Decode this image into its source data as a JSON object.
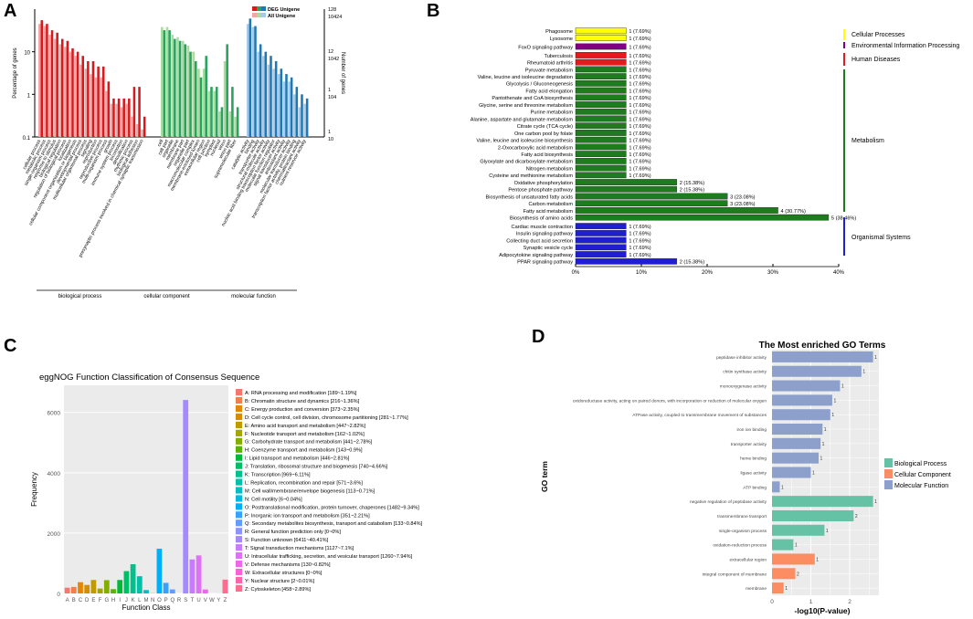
{
  "panel_labels": {
    "a": "A",
    "b": "B",
    "c": "C",
    "d": "D"
  },
  "chart_data": [
    {
      "id": "A",
      "type": "bar",
      "scale": "log",
      "ylabel_left": "Percentage of genes",
      "ylabel_right": "Number of genes",
      "left_ticks": [
        "10",
        "1",
        "0.1"
      ],
      "right_ticks": [
        {
          "top": "128",
          "bottom": "10424"
        },
        {
          "top": "12",
          "bottom": "1042"
        },
        {
          "top": "1",
          "bottom": "104"
        },
        {
          "top": "1",
          "bottom": "10"
        }
      ],
      "legend": [
        {
          "name": "DEG Unigene",
          "colors": [
            "#d7191c",
            "#2ca25f",
            "#1f78b4"
          ]
        },
        {
          "name": "All Unigene",
          "colors": [
            "#f4a6a6",
            "#a8dca0",
            "#a6cae8"
          ]
        }
      ],
      "groups": [
        {
          "name": "biological process",
          "color": "#d7191c",
          "light": "#f4a6a6",
          "categories": [
            "cellular process",
            "metabolic process",
            "single-organism process",
            "response to stimulus",
            "biological regulation",
            "regulation of biological process",
            "localization",
            "cellular component organization or biogenesis",
            "developmental process",
            "multicellular organismal process",
            "signaling",
            "reproduction",
            "reproductive process",
            "multi-organism process",
            "growth",
            "immune system process",
            "locomotion",
            "detoxification",
            "rhythmic process",
            "biological adhesion",
            "presynaptic process involved in chemical synaptic transmission"
          ],
          "deg": [
            55,
            45,
            32,
            28,
            20,
            18,
            12,
            10,
            8,
            6,
            6,
            4.5,
            4.5,
            2,
            0.8,
            0.8,
            0.8,
            0.8,
            1.5,
            1.5,
            0.3
          ],
          "all": [
            45,
            40,
            25,
            20,
            15,
            13,
            10,
            8,
            5,
            4,
            3,
            2.5,
            2.5,
            1.2,
            0.6,
            0.6,
            0.5,
            0.6,
            0.3,
            0.2,
            0.15
          ]
        },
        {
          "name": "cellular component",
          "color": "#2ca25f",
          "light": "#a8dca0",
          "categories": [
            "cell",
            "cell part",
            "organelle",
            "membrane",
            "membrane part",
            "organelle part",
            "macromolecular complex",
            "membrane-enclosed lumen",
            "extracellular region",
            "cell junction",
            "symplast",
            "nucleoid",
            "virion",
            "virion part",
            "supramolecular fiber"
          ],
          "deg": [
            32,
            32,
            20,
            18,
            15,
            10,
            6,
            2.5,
            8,
            1.5,
            1.5,
            0.5,
            15,
            1.5,
            0.5
          ],
          "all": [
            38,
            38,
            25,
            22,
            18,
            14,
            10,
            4,
            4,
            1.2,
            1.2,
            0.4,
            6,
            0.4,
            0.3
          ]
        },
        {
          "name": "molecular function",
          "color": "#1f78b4",
          "light": "#a6cae8",
          "categories": [
            "catalytic activity",
            "binding",
            "transporter activity",
            "structural molecule activity",
            "nucleic acid binding transcription factor activity",
            "molecular function regulator",
            "signal transducer activity",
            "antioxidant activity",
            "molecular transducer activity",
            "transcription factor activity, protein binding",
            "chemoattractant activity",
            "nutrient reservoir activity"
          ],
          "deg": [
            60,
            40,
            15,
            10,
            8,
            6,
            4,
            3,
            2.5,
            1.5,
            1,
            0.8
          ],
          "all": [
            45,
            38,
            10,
            8,
            5,
            4,
            3,
            2,
            2,
            1,
            0.5,
            0.6
          ]
        }
      ]
    },
    {
      "id": "B",
      "type": "bar",
      "orientation": "horizontal",
      "x_ticks": [
        "0%",
        "10%",
        "20%",
        "30%",
        "40%"
      ],
      "xlim": [
        0,
        40
      ],
      "bars": [
        {
          "label": "Phagosome",
          "value": 7.69,
          "text": "1 (7.69%)",
          "color": "#ffff00"
        },
        {
          "label": "Lysosome",
          "value": 7.69,
          "text": "1 (7.69%)",
          "color": "#ffff00"
        },
        {
          "label": "FoxO signaling pathway",
          "value": 7.69,
          "text": "1 (7.69%)",
          "color": "#800080"
        },
        {
          "label": "Tuberculosis",
          "value": 7.69,
          "text": "1 (7.69%)",
          "color": "#e41a1c"
        },
        {
          "label": "Rheumatoid arthritis",
          "value": 7.69,
          "text": "1 (7.69%)",
          "color": "#e41a1c"
        },
        {
          "label": "Pyruvate metabolism",
          "value": 7.69,
          "text": "1 (7.69%)",
          "color": "#1e7b1e"
        },
        {
          "label": "Valine, leucine and isoleucine degradation",
          "value": 7.69,
          "text": "1 (7.69%)",
          "color": "#1e7b1e"
        },
        {
          "label": "Glycolysis / Gluconeogenesis",
          "value": 7.69,
          "text": "1 (7.69%)",
          "color": "#1e7b1e"
        },
        {
          "label": "Fatty acid elongation",
          "value": 7.69,
          "text": "1 (7.69%)",
          "color": "#1e7b1e"
        },
        {
          "label": "Pantothenate and CoA biosynthesis",
          "value": 7.69,
          "text": "1 (7.69%)",
          "color": "#1e7b1e"
        },
        {
          "label": "Glycine, serine and threonine metabolism",
          "value": 7.69,
          "text": "1 (7.69%)",
          "color": "#1e7b1e"
        },
        {
          "label": "Purine metabolism",
          "value": 7.69,
          "text": "1 (7.69%)",
          "color": "#1e7b1e"
        },
        {
          "label": "Alanine, aspartate and glutamate metabolism",
          "value": 7.69,
          "text": "1 (7.69%)",
          "color": "#1e7b1e"
        },
        {
          "label": "Citrate cycle (TCA cycle)",
          "value": 7.69,
          "text": "1 (7.69%)",
          "color": "#1e7b1e"
        },
        {
          "label": "One carbon pool by folate",
          "value": 7.69,
          "text": "1 (7.69%)",
          "color": "#1e7b1e"
        },
        {
          "label": "Valine, leucine and isoleucine biosynthesis",
          "value": 7.69,
          "text": "1 (7.69%)",
          "color": "#1e7b1e"
        },
        {
          "label": "2-Oxocarboxylic acid metabolism",
          "value": 7.69,
          "text": "1 (7.69%)",
          "color": "#1e7b1e"
        },
        {
          "label": "Fatty acid biosynthesis",
          "value": 7.69,
          "text": "1 (7.69%)",
          "color": "#1e7b1e"
        },
        {
          "label": "Glyoxylate and dicarboxylate metabolism",
          "value": 7.69,
          "text": "1 (7.69%)",
          "color": "#1e7b1e"
        },
        {
          "label": "Nitrogen metabolism",
          "value": 7.69,
          "text": "1 (7.69%)",
          "color": "#1e7b1e"
        },
        {
          "label": "Cysteine and methionine metabolism",
          "value": 7.69,
          "text": "1 (7.69%)",
          "color": "#1e7b1e"
        },
        {
          "label": "Oxidative phosphorylation",
          "value": 15.38,
          "text": "2 (15.38%)",
          "color": "#1e7b1e"
        },
        {
          "label": "Pentose phosphate pathway",
          "value": 15.38,
          "text": "2 (15.38%)",
          "color": "#1e7b1e"
        },
        {
          "label": "Biosynthesis of unsaturated fatty acids",
          "value": 23.08,
          "text": "3 (23.08%)",
          "color": "#1e7b1e"
        },
        {
          "label": "Carbon metabolism",
          "value": 23.08,
          "text": "3 (23.08%)",
          "color": "#1e7b1e"
        },
        {
          "label": "Fatty acid metabolism",
          "value": 30.77,
          "text": "4 (30.77%)",
          "color": "#1e7b1e"
        },
        {
          "label": "Biosynthesis of amino acids",
          "value": 38.46,
          "text": "5 (38.46%)",
          "color": "#1e7b1e"
        },
        {
          "label": "Cardiac muscle contraction",
          "value": 7.69,
          "text": "1 (7.69%)",
          "color": "#1f1fd1"
        },
        {
          "label": "Insulin signaling pathway",
          "value": 7.69,
          "text": "1 (7.69%)",
          "color": "#1f1fd1"
        },
        {
          "label": "Collecting duct acid secretion",
          "value": 7.69,
          "text": "1 (7.69%)",
          "color": "#1f1fd1"
        },
        {
          "label": "Synaptic vesicle cycle",
          "value": 7.69,
          "text": "1 (7.69%)",
          "color": "#1f1fd1"
        },
        {
          "label": "Adipocytokine signaling pathway",
          "value": 7.69,
          "text": "1 (7.69%)",
          "color": "#1f1fd1"
        },
        {
          "label": "PPAR signaling pathway",
          "value": 15.38,
          "text": "2 (15.38%)",
          "color": "#1f1fd1"
        }
      ],
      "categories_legend": [
        {
          "name": "Cellular Processes",
          "color": "#ffff00"
        },
        {
          "name": "Environmental Information Processing",
          "color": "#800080"
        },
        {
          "name": "Human Diseases",
          "color": "#e41a1c"
        },
        {
          "name": "Metabolism",
          "color": "#1e7b1e"
        },
        {
          "name": "Organismal Systems",
          "color": "#1f1fd1"
        }
      ]
    },
    {
      "id": "C",
      "type": "bar",
      "title": "eggNOG Function Classification of Consensus Sequence",
      "xlabel": "Function Class",
      "ylabel": "Frequency",
      "ylim": [
        0,
        6900
      ],
      "y_ticks": [
        0,
        2000,
        4000,
        6000
      ],
      "categories": [
        "A",
        "B",
        "C",
        "D",
        "E",
        "F",
        "G",
        "H",
        "I",
        "J",
        "K",
        "L",
        "M",
        "N",
        "O",
        "P",
        "Q",
        "R",
        "S",
        "T",
        "U",
        "V",
        "W",
        "Y",
        "Z"
      ],
      "values": [
        189,
        216,
        373,
        281,
        447,
        162,
        441,
        143,
        446,
        740,
        969,
        571,
        113,
        6,
        1482,
        351,
        133,
        0,
        6411,
        1127,
        1260,
        130,
        0,
        2,
        458
      ],
      "colors": [
        "#f8766d",
        "#f07f4a",
        "#e58700",
        "#d38f00",
        "#c09b00",
        "#a3a500",
        "#84ad00",
        "#59b300",
        "#00ba38",
        "#00be67",
        "#00c08b",
        "#00c0a8",
        "#00bfc4",
        "#00b8e3",
        "#00b0f6",
        "#35a2ff",
        "#619cff",
        "#8b93ff",
        "#a58aff",
        "#c77cff",
        "#df70f8",
        "#f066ea",
        "#fb61d7",
        "#ff65ac",
        "#ff6c91"
      ],
      "legend": [
        "A: RNA processing and modification [189~1.19%]",
        "B: Chromatin structure and dynamics [216~1.36%]",
        "C: Energy production and conversion [373~2.35%]",
        "D: Cell cycle control, cell division, chromosome partitioning [281~1.77%]",
        "E: Amino acid transport and metabolism [447~2.82%]",
        "F: Nucleotide transport and metabolism [162~1.02%]",
        "G: Carbohydrate transport and metabolism [441~2.78%]",
        "H: Coenzyme transport and metabolism [143~0.9%]",
        "I: Lipid transport and metabolism [446~2.81%]",
        "J: Translation, ribosomal structure and biogenesis [740~4.66%]",
        "K: Transcription [969~6.11%]",
        "L: Replication, recombination and repair [571~3.6%]",
        "M: Cell wall/membrane/envelope biogenesis [113~0.71%]",
        "N: Cell motility [6~0.04%]",
        "O: Posttranslational modification, protein turnover, chaperones [1482~9.34%]",
        "P: Inorganic ion transport and metabolism [351~2.21%]",
        "Q: Secondary metabolites biosynthesis, transport and catabolism [133~0.84%]",
        "R: General function prediction only [0~0%]",
        "S: Function unknown [6411~40.41%]",
        "T: Signal transduction mechanisms [1127~7.1%]",
        "U: Intracellular trafficking, secretion, and vesicular transport [1260~7.94%]",
        "V: Defense mechanisms [130~0.82%]",
        "W: Extracellular structures [0~0%]",
        "Y: Nuclear structure [2~0.01%]",
        "Z: Cytoskeleton [458~2.89%]"
      ]
    },
    {
      "id": "D",
      "type": "bar",
      "orientation": "horizontal",
      "title": "The Most enriched GO Terms",
      "xlabel": "-log10(P-value)",
      "ylabel": "GO term",
      "xlim": [
        0,
        2.75
      ],
      "x_ticks": [
        0,
        1,
        2
      ],
      "bars": [
        {
          "label": "peptidase inhibitor activity",
          "value": 2.6,
          "count": "1",
          "group": "Molecular Function"
        },
        {
          "label": "chitin synthase activity",
          "value": 2.3,
          "count": "1",
          "group": "Molecular Function"
        },
        {
          "label": "monooxygenase activity",
          "value": 1.75,
          "count": "1",
          "group": "Molecular Function"
        },
        {
          "label": "oxidoreductase activity, acting on paired donors, with incorporation or reduction of molecular oxygen",
          "value": 1.55,
          "count": "1",
          "group": "Molecular Function"
        },
        {
          "label": "ATPase activity, coupled to transmembrane movement of substances",
          "value": 1.5,
          "count": "1",
          "group": "Molecular Function"
        },
        {
          "label": "iron ion binding",
          "value": 1.3,
          "count": "1",
          "group": "Molecular Function"
        },
        {
          "label": "transporter activity",
          "value": 1.25,
          "count": "1",
          "group": "Molecular Function"
        },
        {
          "label": "heme binding",
          "value": 1.2,
          "count": "1",
          "group": "Molecular Function"
        },
        {
          "label": "ligase activity",
          "value": 1.0,
          "count": "1",
          "group": "Molecular Function"
        },
        {
          "label": "ATP binding",
          "value": 0.2,
          "count": "1",
          "group": "Molecular Function"
        },
        {
          "label": "negative regulation of peptidase activity",
          "value": 2.6,
          "count": "1",
          "group": "Biological Process"
        },
        {
          "label": "transmembrane transport",
          "value": 2.1,
          "count": "2",
          "group": "Biological Process"
        },
        {
          "label": "single-organism process",
          "value": 1.35,
          "count": "1",
          "group": "Biological Process"
        },
        {
          "label": "oxidation-reduction process",
          "value": 0.55,
          "count": "1",
          "group": "Biological Process"
        },
        {
          "label": "extracellular region",
          "value": 1.1,
          "count": "1",
          "group": "Cellular Component"
        },
        {
          "label": "integral component of membrane",
          "value": 0.6,
          "count": "2",
          "group": "Cellular Component"
        },
        {
          "label": "membrane",
          "value": 0.3,
          "count": "1",
          "group": "Cellular Component"
        }
      ],
      "legend": [
        {
          "name": "Biological Process",
          "color": "#66c2a5"
        },
        {
          "name": "Cellular Component",
          "color": "#fc8d62"
        },
        {
          "name": "Molecular Function",
          "color": "#8da0cb"
        }
      ]
    }
  ]
}
